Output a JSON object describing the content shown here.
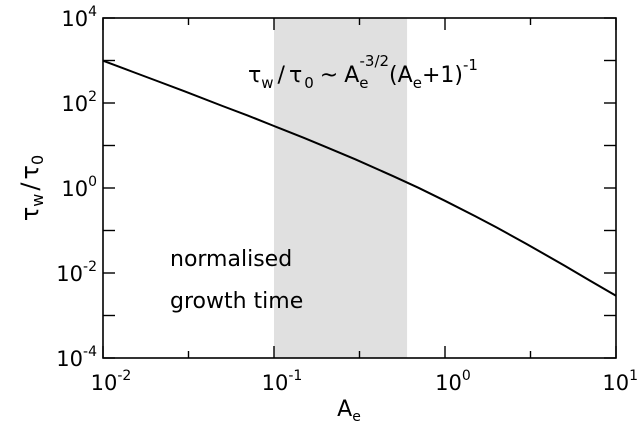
{
  "chart_data": {
    "type": "line",
    "x_scale": "log",
    "y_scale": "log",
    "xlim": [
      0.01,
      10
    ],
    "ylim": [
      0.0001,
      10000
    ],
    "xticks": [
      {
        "base": "10",
        "exp": "-2",
        "value": 0.01
      },
      {
        "base": "10",
        "exp": "-1",
        "value": 0.1
      },
      {
        "base": "10",
        "exp": "0",
        "value": 1
      },
      {
        "base": "10",
        "exp": "1",
        "value": 10
      }
    ],
    "yticks": [
      {
        "base": "10",
        "exp": "-4",
        "value": 0.0001
      },
      {
        "base": "10",
        "exp": "-2",
        "value": 0.01
      },
      {
        "base": "10",
        "exp": "0",
        "value": 1
      },
      {
        "base": "10",
        "exp": "2",
        "value": 100
      },
      {
        "base": "10",
        "exp": "4",
        "value": 10000
      }
    ],
    "xlabel": {
      "main": "A",
      "sub": "e"
    },
    "ylabel": {
      "num": "τ",
      "num_sub": "w",
      "slash": "/",
      "den": "τ",
      "den_sub": "0"
    },
    "shaded_region": {
      "x_from": 0.1,
      "x_to": 0.6,
      "color": "#e0e0e0"
    },
    "series": [
      {
        "color": "#000000",
        "x": [
          0.01,
          0.015,
          0.02,
          0.03,
          0.05,
          0.07,
          0.1,
          0.15,
          0.2,
          0.3,
          0.5,
          0.7,
          1,
          1.5,
          2,
          3,
          5,
          7,
          10
        ],
        "y": [
          990,
          535,
          347,
          188,
          85.2,
          51.2,
          28.7,
          15.1,
          9.3,
          4.7,
          1.89,
          1.01,
          0.5,
          0.218,
          0.118,
          0.048,
          0.0149,
          0.0067,
          0.0029
        ]
      }
    ],
    "annotations": {
      "formula": {
        "t1": "τ",
        "t1_sub": "w",
        "slash": "/",
        "t2": "τ",
        "t2_sub": "0",
        "sim": "~",
        "a": "A",
        "a_sub": "e",
        "a_sup": "-3/2",
        "paren_open": "(",
        "b": "A",
        "b_sub": "e",
        "plus": "+1)",
        "b_sup": "-1"
      },
      "label_line1": "normalised",
      "label_line2": "growth time"
    },
    "grid": false,
    "legend": "none"
  }
}
